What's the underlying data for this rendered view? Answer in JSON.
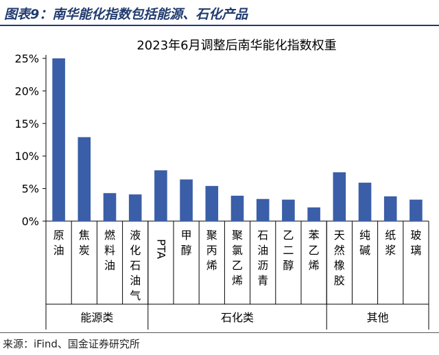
{
  "figure_title": "图表9：南华能化指数包括能源、石化产品",
  "source": "来源：iFind、国金证券研究所",
  "chart_data": {
    "type": "bar",
    "title": "2023年6月调整后南华能化指数权重",
    "categories": [
      "原油",
      "焦炭",
      "燃料油",
      "液化石油气",
      "PTA",
      "甲醇",
      "聚丙烯",
      "聚氯乙烯",
      "石油沥青",
      "乙二醇",
      "苯乙烯",
      "天然橡胶",
      "纯碱",
      "纸浆",
      "玻璃"
    ],
    "values": [
      25.0,
      12.9,
      4.3,
      4.1,
      7.8,
      6.4,
      5.4,
      3.9,
      3.4,
      3.3,
      2.1,
      7.5,
      5.9,
      3.8,
      3.3
    ],
    "ylim": [
      0,
      25
    ],
    "yticks": [
      "0%",
      "5%",
      "10%",
      "15%",
      "20%",
      "25%"
    ],
    "groups": [
      {
        "label": "能源类",
        "span": 4
      },
      {
        "label": "石化类",
        "span": 7
      },
      {
        "label": "其他",
        "span": 4
      }
    ],
    "bar_color": "#3a5ea8",
    "grid": false,
    "legend": "none"
  }
}
